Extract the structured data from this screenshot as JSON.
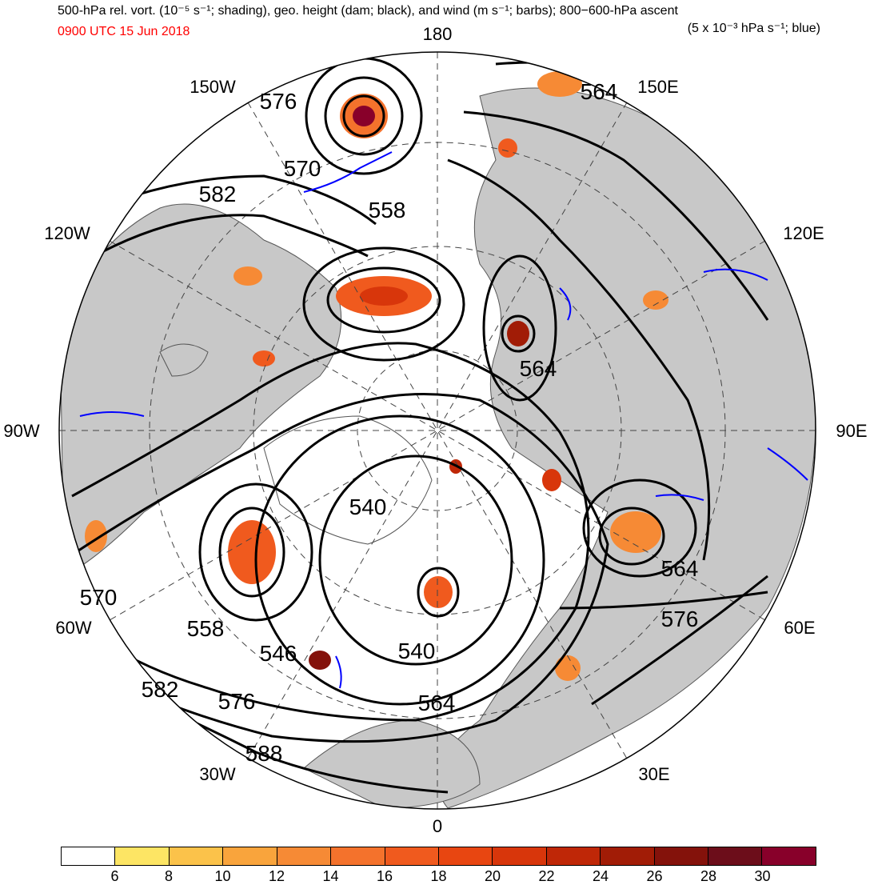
{
  "title": {
    "line1_left": "500-hPa rel. vort. (10⁻⁵ s⁻¹; shading), geo. height (dam; black), and wind (m s⁻¹; barbs); 800−600-hPa ascent",
    "line2_left": "0900 UTC 15 Jun 2018",
    "line2_right": "(5 x 10⁻³ hPa s⁻¹; blue)"
  },
  "longitude_labels": [
    "180",
    "150E",
    "120E",
    "90E",
    "60E",
    "30E",
    "0",
    "30W",
    "60W",
    "90W",
    "120W",
    "150W"
  ],
  "contour_labels": [
    "576",
    "570",
    "582",
    "558",
    "564",
    "564",
    "540",
    "546",
    "540",
    "558",
    "570",
    "582",
    "576",
    "588",
    "564",
    "564",
    "576"
  ],
  "colorbar": {
    "colors": [
      "#ffffff",
      "#fde564",
      "#fbc24a",
      "#f9a43c",
      "#f68a35",
      "#f4722c",
      "#f05a1e",
      "#e84611",
      "#d8360b",
      "#bf2707",
      "#a11c06",
      "#84120b",
      "#6c0d1a",
      "#88002a"
    ],
    "tick_labels": [
      "6",
      "8",
      "10",
      "12",
      "14",
      "16",
      "18",
      "20",
      "22",
      "24",
      "26",
      "28",
      "30"
    ]
  },
  "colors": {
    "land": "#c8c8c8",
    "ocean": "#ffffff",
    "height_contour": "#000000",
    "ascent_contour": "#0000ff",
    "date_text": "#ff0000"
  }
}
